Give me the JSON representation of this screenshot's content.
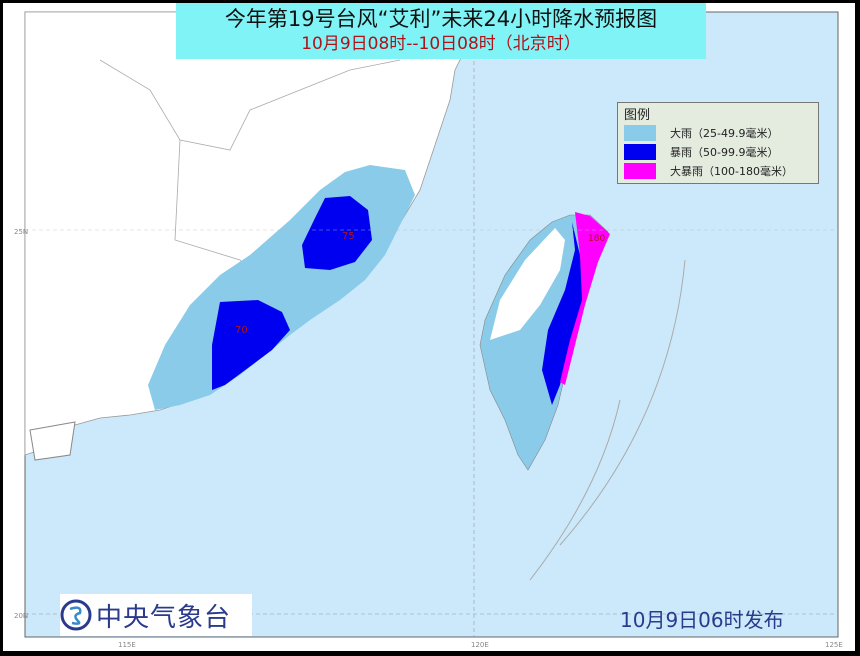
{
  "title": "今年第19号台风“艾利”未来24小时降水预报图",
  "subtitle": "10月9日08时--10日08时（北京时）",
  "legend": {
    "title": "图例",
    "items": [
      {
        "label": "大雨（25-49.9毫米）",
        "color": "#89cbe8"
      },
      {
        "label": "暴雨（50-99.9毫米）",
        "color": "#0000f0"
      },
      {
        "label": "大暴雨（100-180毫米）",
        "color": "#f000f0"
      }
    ]
  },
  "map_labels": {
    "fujian_north": "75",
    "fujian_south": "70",
    "taiwan": "180"
  },
  "axes": {
    "lat": [
      "25N",
      "20N"
    ],
    "lon": [
      "115E",
      "120E",
      "125E"
    ]
  },
  "colors": {
    "sea": "#cce9fb",
    "land": "#ffffff",
    "title_bg": "#7ff3f5"
  },
  "logo": {
    "text": "中央气象台",
    "icon": "cma-logo-icon"
  },
  "issued": "10月9日06时发布"
}
